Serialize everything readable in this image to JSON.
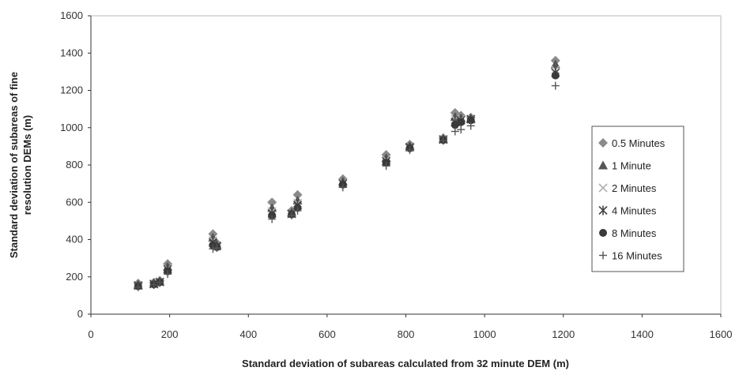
{
  "chart_data": {
    "type": "scatter",
    "title": "",
    "xlabel": "Standard deviation of subareas calculated from  32 minute DEM (m)",
    "ylabel_lines": [
      "Standard deviation of subareas of fine",
      "resolution DEMs (m)"
    ],
    "xlim": [
      0,
      1600
    ],
    "ylim": [
      0,
      1600
    ],
    "xticks": [
      "0",
      "200",
      "400",
      "600",
      "800",
      "1000",
      "1200",
      "1400",
      "1600"
    ],
    "yticks": [
      "0",
      "200",
      "400",
      "600",
      "800",
      "1000",
      "1200",
      "1400",
      "1600"
    ],
    "grid": false,
    "legend_position": "right",
    "x_values": [
      120,
      160,
      175,
      195,
      310,
      320,
      460,
      510,
      525,
      640,
      750,
      810,
      895,
      925,
      940,
      965,
      1180
    ],
    "series": [
      {
        "name": "0.5 Minutes",
        "marker": "diamond",
        "color": "#8a8a8a",
        "values": [
          165,
          170,
          180,
          270,
          430,
          380,
          600,
          555,
          640,
          725,
          855,
          910,
          945,
          1080,
          1065,
          1055,
          1360
        ]
      },
      {
        "name": "1 Minute",
        "marker": "triangle",
        "color": "#555555",
        "values": [
          158,
          166,
          176,
          255,
          410,
          372,
          570,
          545,
          610,
          712,
          838,
          902,
          940,
          1058,
          1052,
          1050,
          1340
        ]
      },
      {
        "name": "2 Minutes",
        "marker": "x",
        "color": "#b0b0b0",
        "values": [
          155,
          163,
          174,
          245,
          395,
          368,
          550,
          540,
          595,
          705,
          828,
          898,
          938,
          1045,
          1046,
          1047,
          1310
        ]
      },
      {
        "name": "4 Minutes",
        "marker": "asterisk",
        "color": "#444444",
        "values": [
          153,
          161,
          172,
          240,
          385,
          365,
          540,
          538,
          585,
          700,
          820,
          895,
          936,
          1030,
          1040,
          1045,
          1295
        ]
      },
      {
        "name": "8 Minutes",
        "marker": "circle",
        "color": "#3a3a3a",
        "values": [
          150,
          160,
          171,
          230,
          370,
          360,
          530,
          535,
          570,
          695,
          812,
          890,
          934,
          1015,
          1030,
          1040,
          1280
        ]
      },
      {
        "name": "16 Minutes",
        "marker": "plus",
        "color": "#555555",
        "values": [
          145,
          158,
          170,
          215,
          350,
          355,
          510,
          530,
          555,
          680,
          795,
          880,
          930,
          980,
          990,
          1010,
          1225
        ]
      }
    ]
  }
}
